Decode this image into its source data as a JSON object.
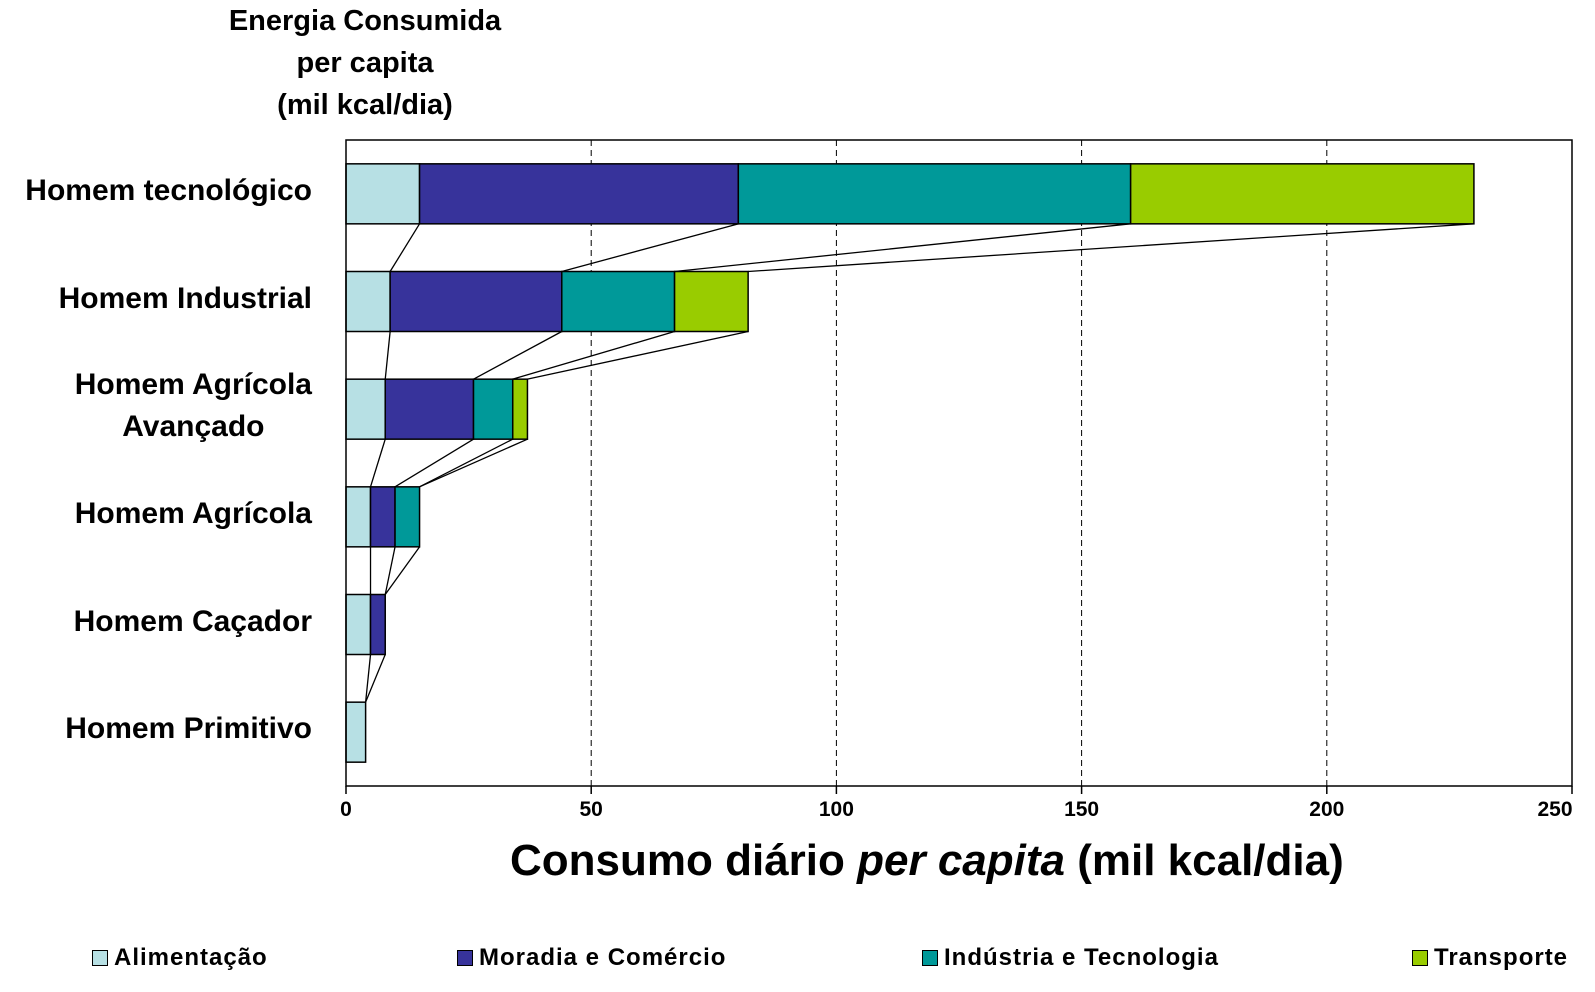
{
  "chart_data": {
    "type": "bar",
    "orientation": "horizontal",
    "stacked": true,
    "title_lines": [
      "Energia Consumida",
      "per capita",
      "(mil kcal/dia)"
    ],
    "xlabel": {
      "part1": "Consumo diário ",
      "part2": "per capita",
      "part3": " (mil kcal/dia)"
    },
    "categories": [
      "Homem tecnológico",
      "Homem Industrial",
      "Homem Agrícola Avançado",
      "Homem Agrícola",
      "Homem Caçador",
      "Homem Primitivo"
    ],
    "category_label_lines": [
      [
        "Homem tecnológico"
      ],
      [
        "Homem Industrial"
      ],
      [
        "Homem Agrícola",
        "Avançado"
      ],
      [
        "Homem Agrícola"
      ],
      [
        "Homem Caçador"
      ],
      [
        "Homem Primitivo"
      ]
    ],
    "series": [
      {
        "name": "Alimentação",
        "color": "#b7e0e4",
        "values": [
          15,
          9,
          8,
          5,
          5,
          4
        ]
      },
      {
        "name": "Moradia e Comércio",
        "color": "#37339b",
        "values": [
          65,
          35,
          18,
          5,
          3,
          0
        ]
      },
      {
        "name": "Indústria e Tecnologia",
        "color": "#009999",
        "values": [
          80,
          23,
          8,
          5,
          0,
          0
        ]
      },
      {
        "name": "Transporte",
        "color": "#99cc00",
        "values": [
          70,
          15,
          3,
          0,
          0,
          0
        ]
      }
    ],
    "xlim": [
      0,
      250
    ],
    "xticks": [
      "0",
      "50",
      "100",
      "150",
      "200",
      "250"
    ],
    "grid": "vertical dashed",
    "connector_lines": true,
    "legend_position": "bottom"
  }
}
